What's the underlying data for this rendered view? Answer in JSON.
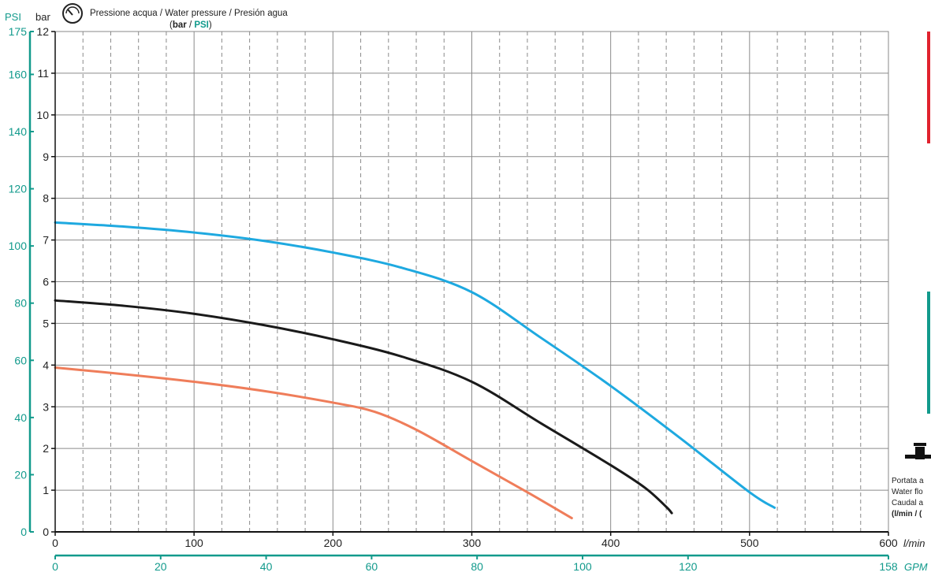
{
  "header": {
    "title": "Pressione acqua / Water pressure / Presión agua",
    "units_open": "(",
    "units_bar": "bar",
    "units_sep": " / ",
    "units_psi": "PSI",
    "units_close": ")"
  },
  "side_text": {
    "flow_line1": "Portata a",
    "flow_line2": "Water flo",
    "flow_line3": "Caudal a",
    "flow_line4": "(l/min / ("
  },
  "colors": {
    "psi_teal": "#129a8c",
    "grid": "#8a8a8a",
    "curve_blue": "#1ea9e0",
    "curve_black": "#1a1a1a",
    "curve_orange": "#ef7d5a",
    "side_red": "#e0222e",
    "side_green": "#129a8c"
  },
  "chart_data": {
    "type": "line",
    "x_label_lmin": "l/min",
    "x_label_gpm": "GPM",
    "y_label_bar": "bar",
    "y_label_psi": "PSI",
    "xlim": [
      0,
      600
    ],
    "ylim_bar": [
      0,
      12
    ],
    "ylim_psi": [
      0,
      175
    ],
    "xlim_gpm": [
      0,
      158
    ],
    "x_ticks_lmin": [
      0,
      100,
      200,
      300,
      400,
      500,
      600
    ],
    "x_ticks_gpm": [
      0,
      20,
      40,
      60,
      80,
      100,
      120,
      158
    ],
    "y_ticks_bar": [
      0,
      1,
      2,
      3,
      4,
      5,
      6,
      7,
      8,
      9,
      10,
      11,
      12
    ],
    "y_ticks_psi": [
      0,
      20,
      40,
      60,
      80,
      100,
      120,
      140,
      160,
      175
    ],
    "grid": true,
    "series": [
      {
        "color": "#1ea9e0",
        "points": [
          [
            0,
            7.42
          ],
          [
            50,
            7.32
          ],
          [
            100,
            7.18
          ],
          [
            150,
            6.98
          ],
          [
            200,
            6.7
          ],
          [
            250,
            6.33
          ],
          [
            300,
            5.75
          ],
          [
            350,
            4.65
          ],
          [
            400,
            3.5
          ],
          [
            450,
            2.25
          ],
          [
            500,
            0.95
          ],
          [
            518,
            0.58
          ]
        ]
      },
      {
        "color": "#1a1a1a",
        "points": [
          [
            0,
            5.55
          ],
          [
            50,
            5.42
          ],
          [
            100,
            5.23
          ],
          [
            150,
            4.96
          ],
          [
            200,
            4.62
          ],
          [
            250,
            4.2
          ],
          [
            300,
            3.6
          ],
          [
            350,
            2.6
          ],
          [
            400,
            1.6
          ],
          [
            425,
            1.05
          ],
          [
            440,
            0.6
          ],
          [
            444,
            0.45
          ]
        ]
      },
      {
        "color": "#ef7d5a",
        "points": [
          [
            0,
            3.94
          ],
          [
            50,
            3.78
          ],
          [
            100,
            3.6
          ],
          [
            150,
            3.38
          ],
          [
            200,
            3.1
          ],
          [
            230,
            2.88
          ],
          [
            260,
            2.45
          ],
          [
            300,
            1.7
          ],
          [
            340,
            0.95
          ],
          [
            372,
            0.33
          ]
        ]
      }
    ]
  }
}
